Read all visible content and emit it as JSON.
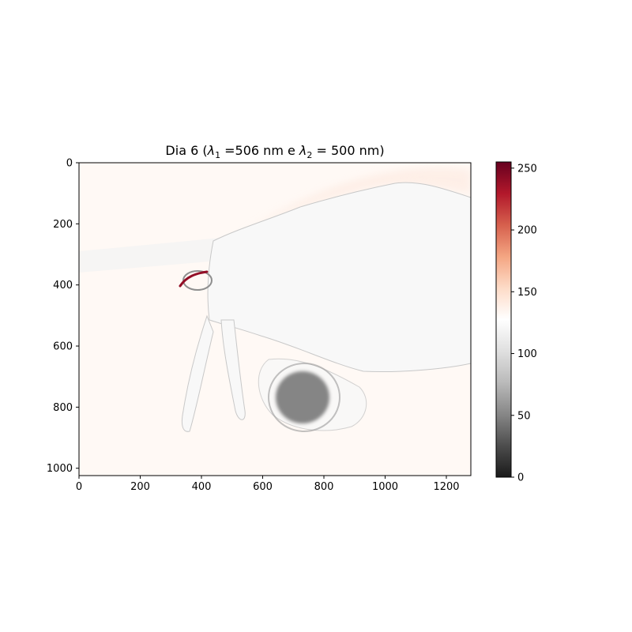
{
  "chart_data": {
    "type": "heatmap",
    "title": {
      "prefix": "Dia 6 (",
      "lambda1_symbol": "λ",
      "lambda1_sub": "1",
      "lambda1_text": " =506 nm e ",
      "lambda2_symbol": "λ",
      "lambda2_sub": "2",
      "lambda2_text": " = 500 nm)"
    },
    "image_width": 1280,
    "image_height": 1024,
    "xlim": [
      0,
      1280
    ],
    "ylim": [
      1024,
      0
    ],
    "x_ticks": [
      0,
      200,
      400,
      600,
      800,
      1000,
      1200
    ],
    "y_ticks": [
      0,
      200,
      400,
      600,
      800,
      1000
    ],
    "colormap": "RdGy_r",
    "colorbar": {
      "range": [
        0,
        255
      ],
      "ticks": [
        0,
        50,
        100,
        150,
        200,
        250
      ]
    },
    "background_value": 128,
    "features": [
      {
        "name": "horizontal-tube",
        "value": 118
      },
      {
        "name": "large-embryo-body",
        "value": 122
      },
      {
        "name": "dark-nucleus-disc",
        "value": 50
      },
      {
        "name": "red-edge-highlight",
        "value": 240
      }
    ],
    "colors": {
      "cmap_stops": [
        "#1a1a1a",
        "#4d4d4d",
        "#878787",
        "#bababa",
        "#e0e0e0",
        "#ffffff",
        "#fddbc7",
        "#f4a582",
        "#d6604d",
        "#b2182b",
        "#67001f"
      ]
    }
  }
}
